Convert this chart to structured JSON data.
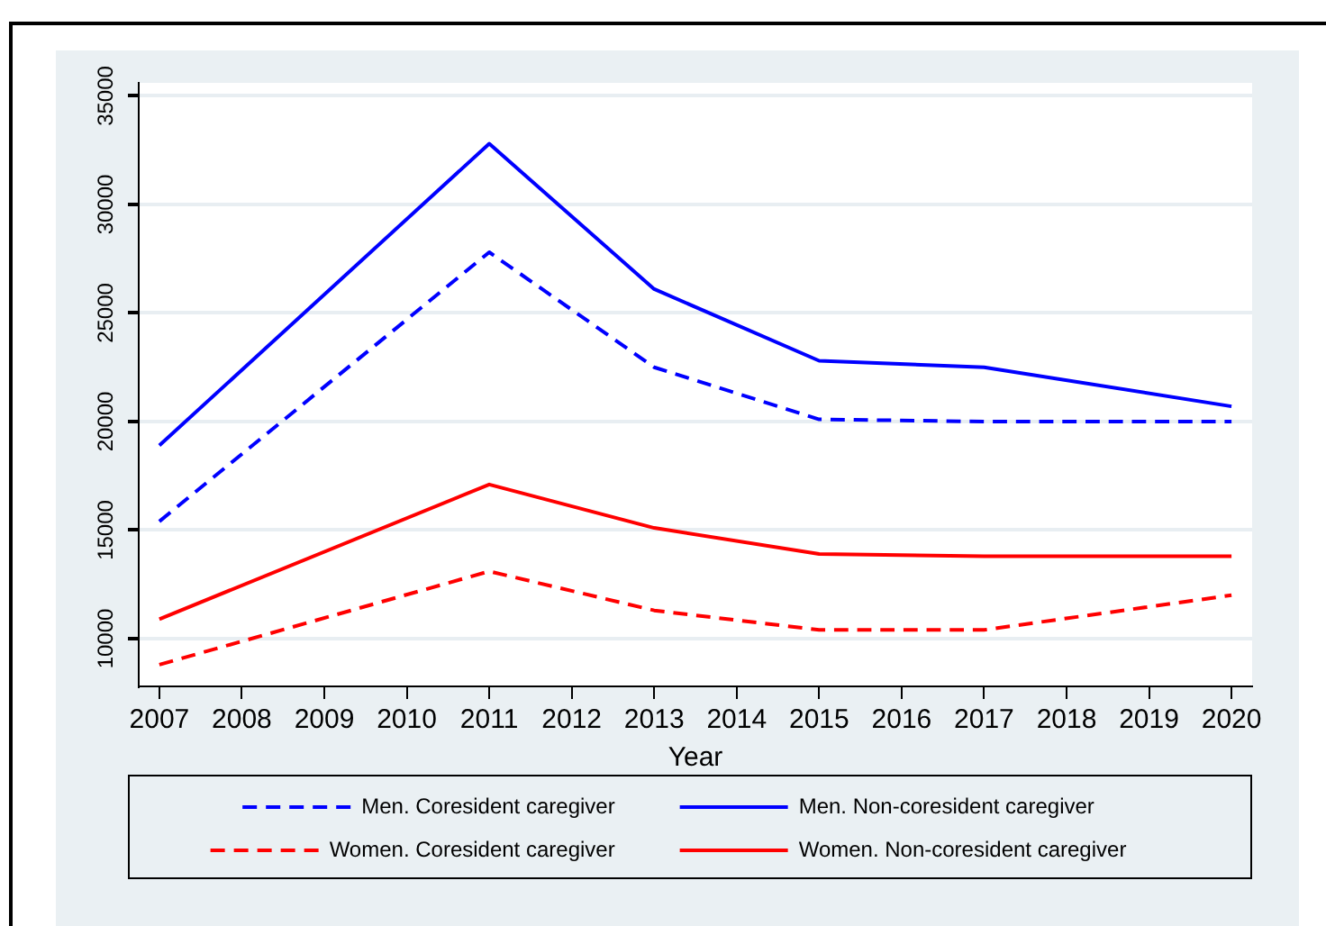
{
  "chart_data": {
    "type": "line",
    "xlabel": "Year",
    "x": [
      2007,
      2011,
      2013,
      2015,
      2017,
      2020
    ],
    "xlim": [
      2006.75,
      2020.25
    ],
    "xticks": [
      2007,
      2008,
      2009,
      2010,
      2011,
      2012,
      2013,
      2014,
      2015,
      2016,
      2017,
      2018,
      2019,
      2020
    ],
    "ylim": [
      7800,
      35600
    ],
    "yticks": [
      10000,
      15000,
      20000,
      25000,
      30000,
      35000
    ],
    "grid": "y",
    "legend": "bottom",
    "marker": "none",
    "series": [
      {
        "name": "Men. Coresident caregiver",
        "color": "#0000ff",
        "line_style": "dashed",
        "values": [
          15400,
          27800,
          22500,
          20100,
          20000,
          20000
        ]
      },
      {
        "name": "Men. Non-coresident caregiver",
        "color": "#0000ff",
        "line_style": "solid",
        "values": [
          18900,
          32800,
          26100,
          22800,
          22500,
          20700
        ]
      },
      {
        "name": "Women. Coresident caregiver",
        "color": "#ff0000",
        "line_style": "dashed",
        "values": [
          8800,
          13100,
          11300,
          10400,
          10400,
          12000
        ]
      },
      {
        "name": "Women. Non-coresident caregiver",
        "color": "#ff0000",
        "line_style": "solid",
        "values": [
          10900,
          17100,
          15100,
          13900,
          13800,
          13800
        ]
      }
    ]
  }
}
